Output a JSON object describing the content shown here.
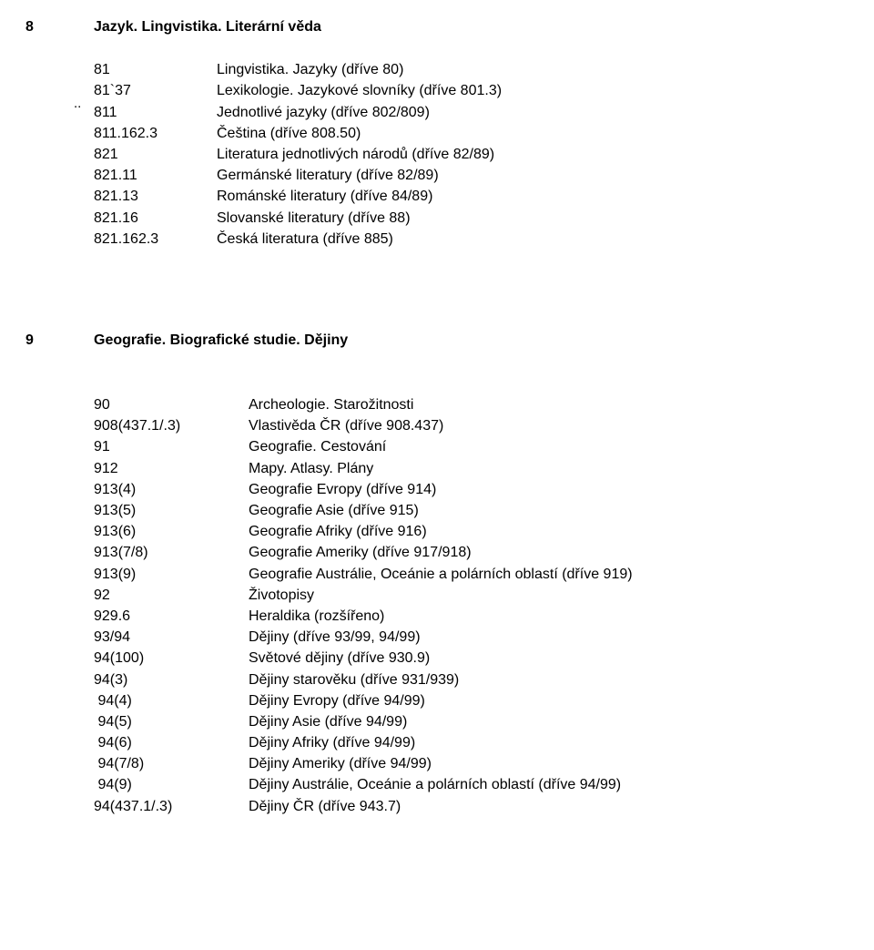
{
  "section8": {
    "num": "8",
    "title": "Jazyk. Lingvistika. Literární věda",
    "noteMark": "..",
    "items": [
      {
        "code": "81",
        "desc": "Lingvistika. Jazyky (dříve 80)"
      },
      {
        "code": "81`37",
        "desc": "Lexikologie. Jazykové slovníky (dříve 801.3)"
      },
      {
        "code": "811",
        "desc": "Jednotlivé jazyky  (dříve 802/809)"
      },
      {
        "code": "811.162.3",
        "desc": "Čeština   (dříve 808.50)"
      },
      {
        "code": "821",
        "desc": "Literatura jednotlivých národů  (dříve 82/89)"
      },
      {
        "code": "821.11",
        "desc": "Germánské literatury  (dříve 82/89)"
      },
      {
        "code": "821.13",
        "desc": "Románské literatury    (dříve 84/89)"
      },
      {
        "code": "821.16",
        "desc": "Slovanské literatury   (dříve 88)"
      },
      {
        "code": "821.162.3",
        "desc": "Česká literatura (dříve 885)"
      }
    ]
  },
  "section9": {
    "num": "9",
    "title": "Geografie. Biografické studie. Dějiny",
    "items": [
      {
        "code": "90",
        "desc": "Archeologie. Starožitnosti"
      },
      {
        "code": "908(437.1/.3)",
        "desc": "Vlastivěda ČR   (dříve 908.437)"
      },
      {
        "code": "91",
        "desc": "Geografie. Cestování"
      },
      {
        "code": "912",
        "desc": "Mapy. Atlasy. Plány"
      },
      {
        "code": "913(4)",
        "desc": "Geografie Evropy  (dříve 914)"
      },
      {
        "code": "913(5)",
        "desc": "Geografie Asie  (dříve 915)"
      },
      {
        "code": "913(6)",
        "desc": "Geografie Afriky  (dříve 916)"
      },
      {
        "code": "913(7/8)",
        "desc": "Geografie Ameriky  (dříve 917/918)"
      },
      {
        "code": "913(9)",
        "desc": "Geografie Austrálie, Oceánie a polárních oblastí (dříve 919)"
      },
      {
        "code": "92",
        "desc": "Životopisy"
      },
      {
        "code": "929.6",
        "desc": "Heraldika  (rozšířeno)"
      },
      {
        "code": "93/94",
        "desc": "Dějiny   (dříve 93/99, 94/99)"
      },
      {
        "code": "94(100)",
        "desc": "Světové dějiny  (dříve 930.9)"
      },
      {
        "code": "94(3)",
        "desc": "Dějiny starověku     (dříve 931/939)"
      },
      {
        "code": " 94(4)",
        "desc": "Dějiny Evropy (dříve 94/99)"
      },
      {
        "code": " 94(5)",
        "desc": "Dějiny Asie  (dříve 94/99)"
      },
      {
        "code": " 94(6)",
        "desc": "Dějiny Afriky (dříve 94/99)"
      },
      {
        "code": " 94(7/8)",
        "desc": "Dějiny Ameriky (dříve 94/99)"
      },
      {
        "code": " 94(9)",
        "desc": "Dějiny Austrálie, Oceánie a polárních oblastí   (dříve 94/99)"
      },
      {
        "code": "94(437.1/.3)",
        "desc": "Dějiny ČR  (dříve 943.7)"
      }
    ]
  }
}
